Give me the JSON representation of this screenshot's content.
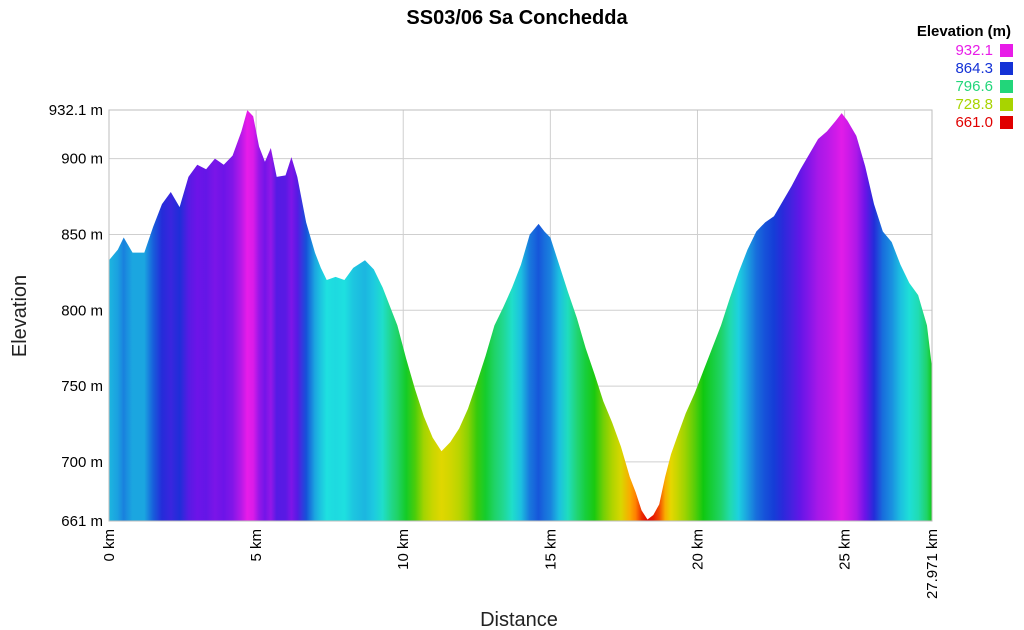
{
  "chart_data": {
    "type": "area",
    "title": "SS03/06 Sa Conchedda",
    "xlabel": "Distance",
    "ylabel": "Elevation",
    "xlim": [
      0,
      27.971
    ],
    "ylim": [
      661,
      932.1
    ],
    "grid": true,
    "x_ticks": [
      {
        "value": 0,
        "label": "0 km"
      },
      {
        "value": 5,
        "label": "5 km"
      },
      {
        "value": 10,
        "label": "10 km"
      },
      {
        "value": 15,
        "label": "15 km"
      },
      {
        "value": 20,
        "label": "20 km"
      },
      {
        "value": 25,
        "label": "25 km"
      },
      {
        "value": 27.971,
        "label": "27.971 km"
      }
    ],
    "y_ticks": [
      {
        "value": 661,
        "label": "661 m"
      },
      {
        "value": 700,
        "label": "700 m"
      },
      {
        "value": 750,
        "label": "750 m"
      },
      {
        "value": 800,
        "label": "800 m"
      },
      {
        "value": 850,
        "label": "850 m"
      },
      {
        "value": 900,
        "label": "900 m"
      },
      {
        "value": 932.1,
        "label": "932.1 m"
      }
    ],
    "legend": {
      "title": "Elevation (m)",
      "placement": "top-right",
      "entries": [
        {
          "label": "932.1",
          "color": "#e81ce8"
        },
        {
          "label": "864.3",
          "color": "#1432d6"
        },
        {
          "label": "796.6",
          "color": "#22d67a"
        },
        {
          "label": "728.8",
          "color": "#a8d400"
        },
        {
          "label": "661.0",
          "color": "#e00000"
        }
      ]
    },
    "color_scale": [
      {
        "value": 661.0,
        "color": "#e00000"
      },
      {
        "value": 680.0,
        "color": "#ff8000"
      },
      {
        "value": 700.0,
        "color": "#f2d800"
      },
      {
        "value": 728.8,
        "color": "#a8d400"
      },
      {
        "value": 760.0,
        "color": "#10c810"
      },
      {
        "value": 796.6,
        "color": "#22d67a"
      },
      {
        "value": 820.0,
        "color": "#1ee0e0"
      },
      {
        "value": 845.0,
        "color": "#1a90e0"
      },
      {
        "value": 864.3,
        "color": "#1432d6"
      },
      {
        "value": 895.0,
        "color": "#6a14e8"
      },
      {
        "value": 932.1,
        "color": "#e81ce8"
      }
    ],
    "profile": {
      "x": [
        0,
        0.3,
        0.5,
        0.8,
        1.2,
        1.5,
        1.8,
        2.1,
        2.4,
        2.7,
        3.0,
        3.3,
        3.6,
        3.9,
        4.2,
        4.5,
        4.7,
        4.9,
        5.1,
        5.3,
        5.5,
        5.7,
        6.0,
        6.2,
        6.4,
        6.7,
        7.0,
        7.2,
        7.4,
        7.7,
        8.0,
        8.3,
        8.7,
        9.0,
        9.3,
        9.6,
        9.8,
        10.1,
        10.4,
        10.7,
        11.0,
        11.3,
        11.6,
        11.9,
        12.2,
        12.5,
        12.8,
        13.1,
        13.4,
        13.7,
        14.0,
        14.3,
        14.6,
        14.8,
        15.0,
        15.3,
        15.6,
        15.9,
        16.2,
        16.5,
        16.8,
        17.1,
        17.4,
        17.7,
        17.9,
        18.1,
        18.3,
        18.5,
        18.7,
        18.9,
        19.1,
        19.3,
        19.6,
        19.9,
        20.2,
        20.5,
        20.8,
        21.1,
        21.4,
        21.7,
        22.0,
        22.3,
        22.6,
        22.9,
        23.2,
        23.5,
        23.8,
        24.1,
        24.4,
        24.7,
        24.9,
        25.1,
        25.4,
        25.7,
        26.0,
        26.3,
        26.6,
        26.9,
        27.2,
        27.5,
        27.8,
        27.971
      ],
      "y": [
        833,
        840,
        848,
        838,
        838,
        855,
        870,
        878,
        868,
        888,
        896,
        893,
        900,
        896,
        902,
        918,
        932,
        928,
        908,
        898,
        907,
        888,
        889,
        901,
        888,
        858,
        838,
        828,
        820,
        822,
        820,
        828,
        833,
        827,
        815,
        800,
        790,
        768,
        748,
        730,
        716,
        707,
        713,
        722,
        735,
        752,
        770,
        790,
        802,
        815,
        830,
        850,
        857,
        852,
        848,
        830,
        812,
        795,
        775,
        758,
        740,
        726,
        710,
        690,
        680,
        668,
        662,
        665,
        672,
        690,
        705,
        716,
        732,
        745,
        760,
        775,
        790,
        808,
        825,
        840,
        852,
        858,
        862,
        872,
        882,
        893,
        903,
        913,
        918,
        925,
        930,
        925,
        915,
        895,
        870,
        852,
        845,
        830,
        818,
        810,
        790,
        762
      ]
    }
  }
}
